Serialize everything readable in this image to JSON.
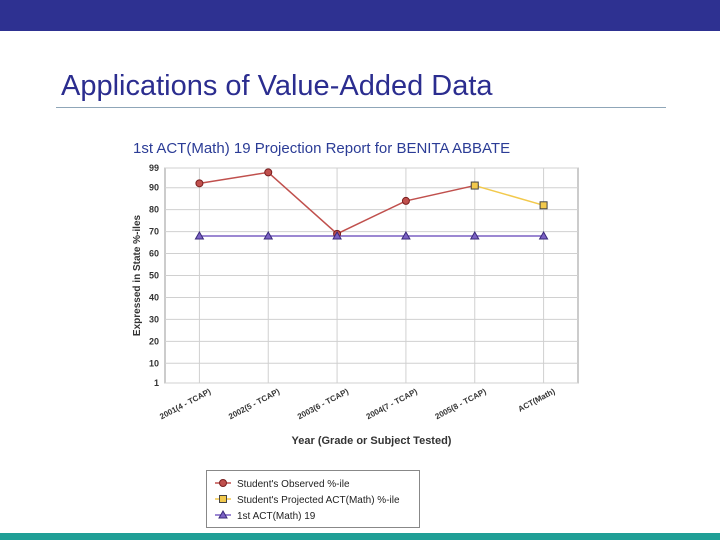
{
  "slide": {
    "title": "Applications of Value-Added Data"
  },
  "colors": {
    "top_bar": "#2e3191",
    "bottom_bar": "#1f9f96",
    "title": "#2b2d8f"
  },
  "chart_data": {
    "type": "line",
    "title": "1st ACT(Math) 19 Projection Report for BENITA ABBATE",
    "xlabel": "Year (Grade or Subject Tested)",
    "ylabel": "Expressed in State %-iles",
    "categories": [
      "2001(4 - TCAP)",
      "2002(5 - TCAP)",
      "2003(6 - TCAP)",
      "2004(7 - TCAP)",
      "2005(8 - TCAP)",
      "ACT(Math)"
    ],
    "y_ticks": [
      "1",
      "10",
      "20",
      "30",
      "40",
      "50",
      "60",
      "70",
      "80",
      "90",
      "99"
    ],
    "ylim": [
      1,
      99
    ],
    "grid": true,
    "legend_position": "bottom",
    "series": [
      {
        "name": "Student's Observed %-ile",
        "color": "#c0504d",
        "marker": "circle",
        "values": [
          92,
          97,
          69,
          84,
          91,
          null
        ]
      },
      {
        "name": "Student's Projected ACT(Math) %-ile",
        "color": "#f2c94c",
        "marker": "square",
        "values": [
          null,
          null,
          null,
          null,
          91,
          82
        ]
      },
      {
        "name": "1st ACT(Math) 19",
        "color": "#7b61c4",
        "marker": "triangle",
        "values": [
          68,
          68,
          68,
          68,
          68,
          68
        ]
      }
    ]
  }
}
